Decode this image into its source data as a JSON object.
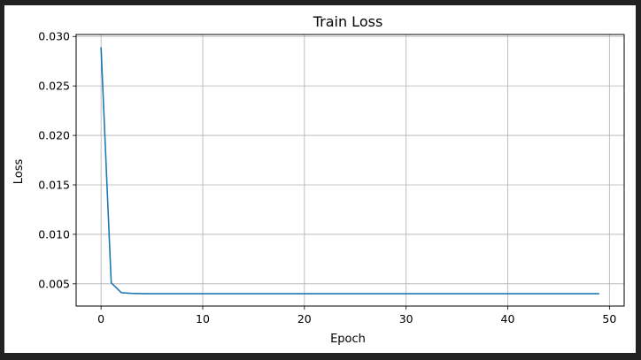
{
  "colors": {
    "page_background": "#222222",
    "figure_background": "#ffffff",
    "line": "#1f77b4",
    "grid": "#b0b0b0"
  },
  "chart_data": {
    "type": "line",
    "title": "Train Loss",
    "xlabel": "Epoch",
    "ylabel": "Loss",
    "xlim": [
      -2.45,
      51.45
    ],
    "ylim": [
      0.00275,
      0.0302
    ],
    "xticks": [
      0,
      10,
      20,
      30,
      40,
      50
    ],
    "yticks": [
      0.005,
      0.01,
      0.015,
      0.02,
      0.025,
      0.03
    ],
    "xtick_labels": [
      "0",
      "10",
      "20",
      "30",
      "40",
      "50"
    ],
    "ytick_labels": [
      "0.005",
      "0.010",
      "0.015",
      "0.020",
      "0.025",
      "0.030"
    ],
    "grid": true,
    "legend": "none",
    "series": [
      {
        "color": "#1f77b4",
        "x": [
          0,
          1,
          2,
          3,
          4,
          5,
          6,
          7,
          8,
          9,
          10,
          11,
          12,
          13,
          14,
          15,
          16,
          17,
          18,
          19,
          20,
          21,
          22,
          23,
          24,
          25,
          26,
          27,
          28,
          29,
          30,
          31,
          32,
          33,
          34,
          35,
          36,
          37,
          38,
          39,
          40,
          41,
          42,
          43,
          44,
          45,
          46,
          47,
          48,
          49
        ],
        "y": [
          0.0289,
          0.0051,
          0.0041,
          0.00403,
          0.00401,
          0.004,
          0.004,
          0.004,
          0.004,
          0.004,
          0.004,
          0.004,
          0.004,
          0.004,
          0.004,
          0.004,
          0.004,
          0.004,
          0.004,
          0.004,
          0.004,
          0.004,
          0.004,
          0.004,
          0.004,
          0.004,
          0.004,
          0.004,
          0.004,
          0.004,
          0.004,
          0.004,
          0.004,
          0.004,
          0.004,
          0.004,
          0.004,
          0.004,
          0.004,
          0.004,
          0.004,
          0.004,
          0.004,
          0.004,
          0.004,
          0.004,
          0.004,
          0.004,
          0.004,
          0.004
        ]
      }
    ]
  }
}
